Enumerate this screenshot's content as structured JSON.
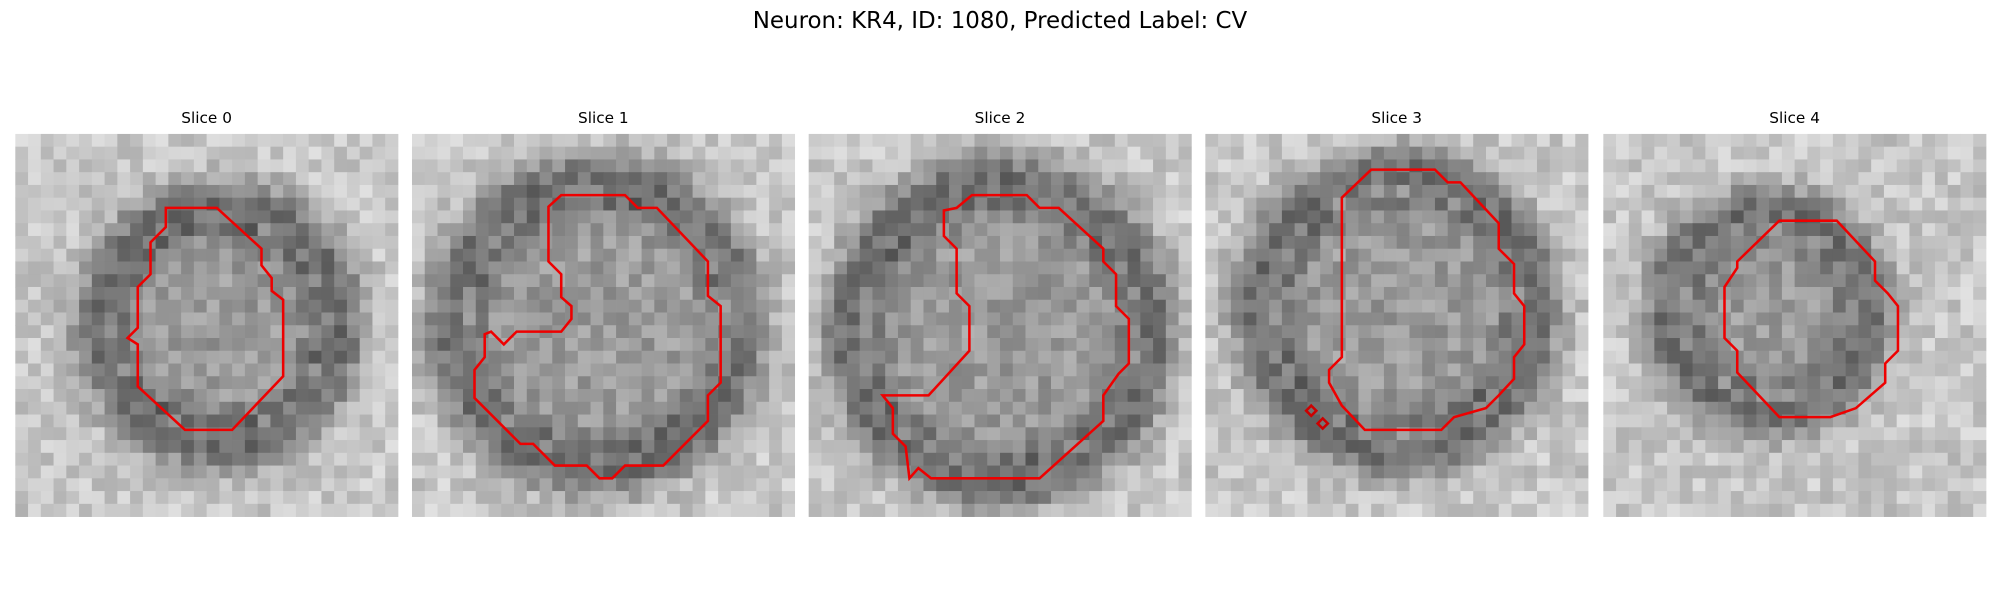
{
  "title": "Neuron: KR4, ID: 1080, Predicted Label: CV",
  "panels": [
    {
      "title": "Slice 0"
    },
    {
      "title": "Slice 1"
    },
    {
      "title": "Slice 2"
    },
    {
      "title": "Slice 3"
    },
    {
      "title": "Slice 4"
    }
  ]
}
